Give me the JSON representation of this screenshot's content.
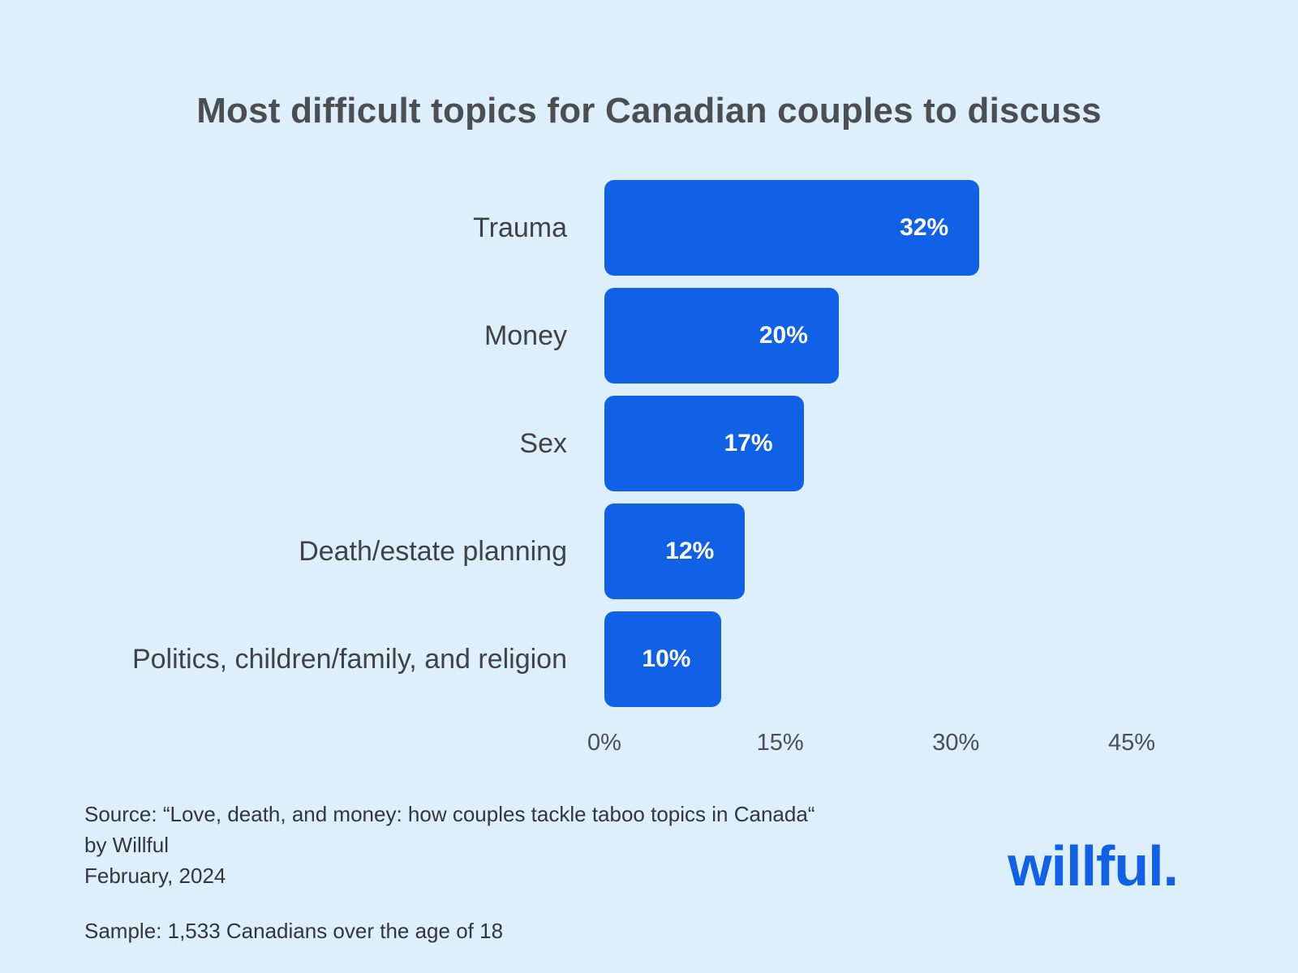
{
  "title": "Most difficult topics for Canadian couples to discuss",
  "chart_data": {
    "type": "bar",
    "orientation": "horizontal",
    "title": "Most difficult topics for Canadian couples to discuss",
    "categories": [
      "Trauma",
      "Money",
      "Sex",
      "Death/estate planning",
      "Politics, children/family, and religion"
    ],
    "values": [
      32,
      20,
      17,
      12,
      10
    ],
    "value_labels": [
      "32%",
      "20%",
      "17%",
      "12%",
      "10%"
    ],
    "xlabel": "",
    "ylabel": "",
    "xlim": [
      0,
      45
    ],
    "x_ticks": [
      "0%",
      "15%",
      "30%",
      "45%"
    ],
    "x_tick_values": [
      0,
      15,
      30,
      45
    ],
    "grid": false,
    "legend": false,
    "bar_color": "#1161e6",
    "background_color": "#ddeffa",
    "value_label_color": "#ffffff"
  },
  "footer": {
    "source_line1": "Source: “Love, death, and money: how couples tackle taboo topics in Canada“",
    "source_line2": "by Willful",
    "source_line3": "February, 2024",
    "sample": "Sample: 1,533 Canadians over the age of 18",
    "logo_text": "willful."
  }
}
